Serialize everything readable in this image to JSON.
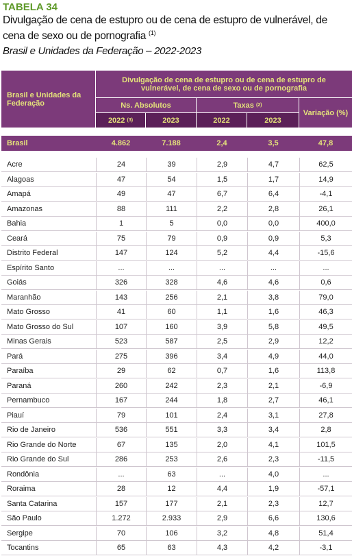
{
  "header": {
    "label": "TABELA 34",
    "title": "Divulgação de cena de estupro ou de cena de estupro de vulnerável, de cena de sexo ou de pornografia",
    "title_note": "(1)",
    "subtitle": "Brasil e Unidades da Federação – 2022-2023"
  },
  "table": {
    "head": {
      "unit_label": "Brasil e Unidades da Federação",
      "group": "Divulgação de cena de estupro ou de cena de estupro de vulnerável, de cena de sexo ou de pornografia",
      "absolutes": "Ns. Absolutos",
      "rates": "Taxas",
      "rates_note": "(2)",
      "variation": "Variação (%)",
      "years": [
        "2022",
        "2023",
        "2022",
        "2023"
      ],
      "year_note": "(3)"
    },
    "total": [
      "Brasil",
      "4.862",
      "7.188",
      "2,4",
      "3,5",
      "47,8"
    ],
    "rows": [
      [
        "Acre",
        "24",
        "39",
        "2,9",
        "4,7",
        "62,5"
      ],
      [
        "Alagoas",
        "47",
        "54",
        "1,5",
        "1,7",
        "14,9"
      ],
      [
        "Amapá",
        "49",
        "47",
        "6,7",
        "6,4",
        "-4,1"
      ],
      [
        "Amazonas",
        "88",
        "111",
        "2,2",
        "2,8",
        "26,1"
      ],
      [
        "Bahia",
        "1",
        "5",
        "0,0",
        "0,0",
        "400,0"
      ],
      [
        "Ceará",
        "75",
        "79",
        "0,9",
        "0,9",
        "5,3"
      ],
      [
        "Distrito Federal",
        "147",
        "124",
        "5,2",
        "4,4",
        "-15,6"
      ],
      [
        "Espírito Santo",
        "...",
        "...",
        "...",
        "...",
        "..."
      ],
      [
        "Goiás",
        "326",
        "328",
        "4,6",
        "4,6",
        "0,6"
      ],
      [
        "Maranhão",
        "143",
        "256",
        "2,1",
        "3,8",
        "79,0"
      ],
      [
        "Mato Grosso",
        "41",
        "60",
        "1,1",
        "1,6",
        "46,3"
      ],
      [
        "Mato Grosso do Sul",
        "107",
        "160",
        "3,9",
        "5,8",
        "49,5"
      ],
      [
        "Minas Gerais",
        "523",
        "587",
        "2,5",
        "2,9",
        "12,2"
      ],
      [
        "Pará",
        "275",
        "396",
        "3,4",
        "4,9",
        "44,0"
      ],
      [
        "Paraíba",
        "29",
        "62",
        "0,7",
        "1,6",
        "113,8"
      ],
      [
        "Paraná",
        "260",
        "242",
        "2,3",
        "2,1",
        "-6,9"
      ],
      [
        "Pernambuco",
        "167",
        "244",
        "1,8",
        "2,7",
        "46,1"
      ],
      [
        "Piauí",
        "79",
        "101",
        "2,4",
        "3,1",
        "27,8"
      ],
      [
        "Rio de Janeiro",
        "536",
        "551",
        "3,3",
        "3,4",
        "2,8"
      ],
      [
        "Rio Grande do Norte",
        "67",
        "135",
        "2,0",
        "4,1",
        "101,5"
      ],
      [
        "Rio Grande do Sul",
        "286",
        "253",
        "2,6",
        "2,3",
        "-11,5"
      ],
      [
        "Rondônia",
        "...",
        "63",
        "...",
        "4,0",
        "..."
      ],
      [
        "Roraima",
        "28",
        "12",
        "4,4",
        "1,9",
        "-57,1"
      ],
      [
        "Santa Catarina",
        "157",
        "177",
        "2,1",
        "2,3",
        "12,7"
      ],
      [
        "São Paulo",
        "1.272",
        "2.933",
        "2,9",
        "6,6",
        "130,6"
      ],
      [
        "Sergipe",
        "70",
        "106",
        "3,2",
        "4,8",
        "51,4"
      ],
      [
        "Tocantins",
        "65",
        "63",
        "4,3",
        "4,2",
        "-3,1"
      ]
    ]
  }
}
